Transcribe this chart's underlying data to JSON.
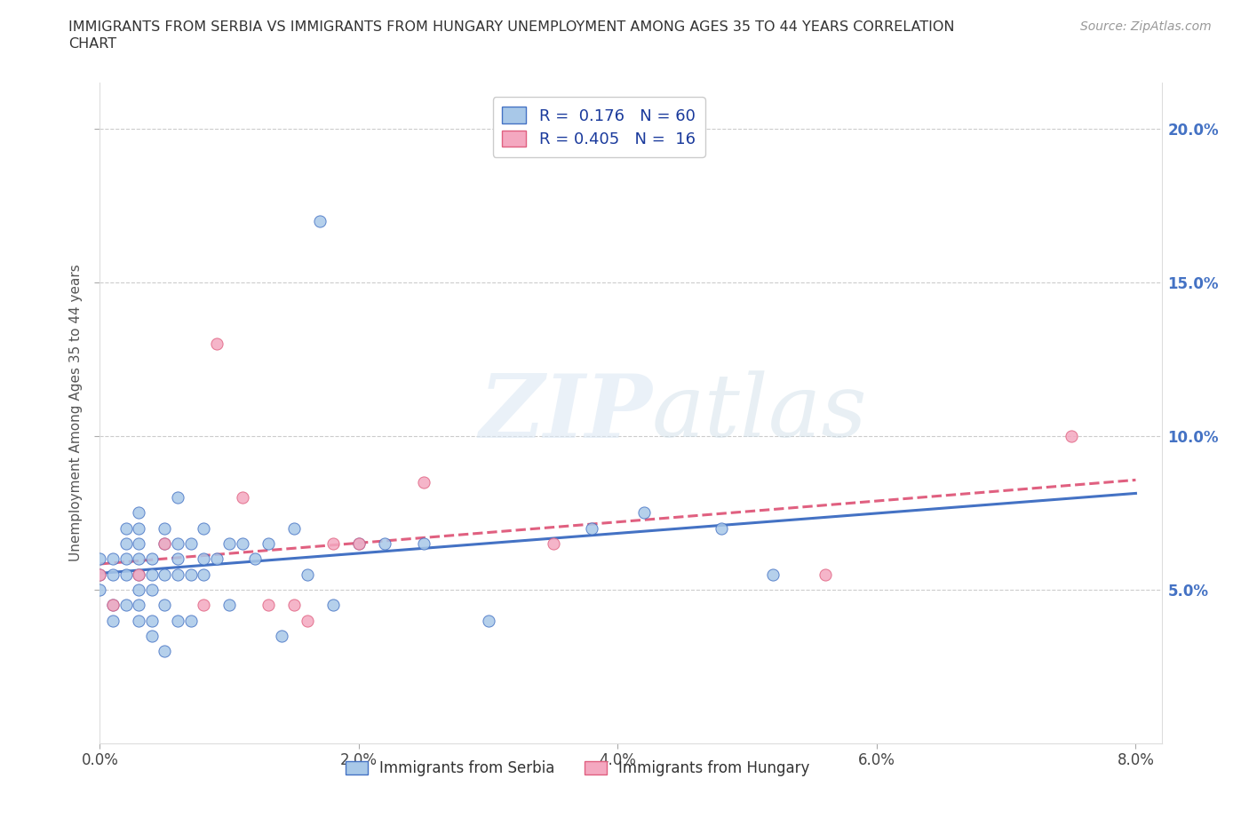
{
  "title_line1": "IMMIGRANTS FROM SERBIA VS IMMIGRANTS FROM HUNGARY UNEMPLOYMENT AMONG AGES 35 TO 44 YEARS CORRELATION",
  "title_line2": "CHART",
  "source": "Source: ZipAtlas.com",
  "ylabel": "Unemployment Among Ages 35 to 44 years",
  "xlim": [
    0.0,
    0.082
  ],
  "ylim": [
    0.0,
    0.215
  ],
  "xticks": [
    0.0,
    0.02,
    0.04,
    0.06,
    0.08
  ],
  "xtick_labels": [
    "0.0%",
    "2.0%",
    "4.0%",
    "6.0%",
    "8.0%"
  ],
  "yticks": [
    0.05,
    0.1,
    0.15,
    0.2
  ],
  "ytick_labels": [
    "5.0%",
    "10.0%",
    "15.0%",
    "20.0%"
  ],
  "serbia_color": "#a8c8e8",
  "hungary_color": "#f4a8c0",
  "serbia_line_color": "#4472c4",
  "hungary_line_color": "#e06080",
  "R_serbia": 0.176,
  "N_serbia": 60,
  "R_hungary": 0.405,
  "N_hungary": 16,
  "serbia_x": [
    0.0,
    0.0,
    0.0,
    0.001,
    0.001,
    0.001,
    0.001,
    0.002,
    0.002,
    0.002,
    0.002,
    0.002,
    0.003,
    0.003,
    0.003,
    0.003,
    0.003,
    0.003,
    0.003,
    0.003,
    0.004,
    0.004,
    0.004,
    0.004,
    0.004,
    0.005,
    0.005,
    0.005,
    0.005,
    0.005,
    0.006,
    0.006,
    0.006,
    0.006,
    0.006,
    0.007,
    0.007,
    0.007,
    0.008,
    0.008,
    0.008,
    0.009,
    0.01,
    0.01,
    0.011,
    0.012,
    0.013,
    0.014,
    0.015,
    0.016,
    0.017,
    0.018,
    0.02,
    0.022,
    0.025,
    0.03,
    0.038,
    0.042,
    0.048,
    0.052
  ],
  "serbia_y": [
    0.05,
    0.06,
    0.055,
    0.04,
    0.045,
    0.055,
    0.06,
    0.045,
    0.055,
    0.06,
    0.065,
    0.07,
    0.04,
    0.045,
    0.05,
    0.055,
    0.06,
    0.065,
    0.07,
    0.075,
    0.035,
    0.04,
    0.05,
    0.055,
    0.06,
    0.03,
    0.045,
    0.055,
    0.065,
    0.07,
    0.04,
    0.055,
    0.06,
    0.065,
    0.08,
    0.04,
    0.055,
    0.065,
    0.055,
    0.06,
    0.07,
    0.06,
    0.045,
    0.065,
    0.065,
    0.06,
    0.065,
    0.035,
    0.07,
    0.055,
    0.17,
    0.045,
    0.065,
    0.065,
    0.065,
    0.04,
    0.07,
    0.075,
    0.07,
    0.055
  ],
  "hungary_x": [
    0.0,
    0.001,
    0.003,
    0.005,
    0.008,
    0.009,
    0.011,
    0.013,
    0.015,
    0.016,
    0.018,
    0.02,
    0.025,
    0.035,
    0.056,
    0.075
  ],
  "hungary_y": [
    0.055,
    0.045,
    0.055,
    0.065,
    0.045,
    0.13,
    0.08,
    0.045,
    0.045,
    0.04,
    0.065,
    0.065,
    0.085,
    0.065,
    0.055,
    0.1
  ]
}
